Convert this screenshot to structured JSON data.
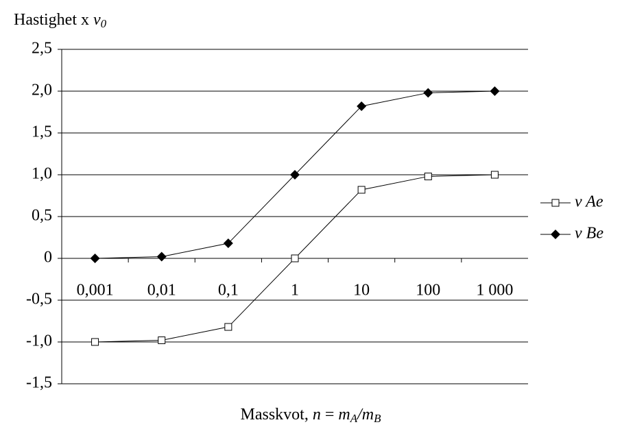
{
  "chart_data": {
    "type": "line",
    "ylabel": [
      "Hastighet x ",
      "v",
      "0"
    ],
    "xlabel": [
      "Masskvot, ",
      "n",
      " = ",
      "m",
      "A",
      "/",
      "m",
      "B"
    ],
    "categories": [
      "0,001",
      "0,01",
      "0,1",
      "1",
      "10",
      "100",
      "1 000"
    ],
    "series": [
      {
        "name": "v Ae",
        "color": "#000000",
        "marker": "square",
        "values": [
          -1.0,
          -0.98,
          -0.82,
          0,
          0.82,
          0.98,
          1.0
        ]
      },
      {
        "name": "v Be",
        "color": "#000000",
        "marker": "diamond",
        "values": [
          0,
          0.02,
          0.18,
          1.0,
          1.82,
          1.98,
          2.0
        ]
      }
    ],
    "ylim": [
      -1.5,
      2.5
    ],
    "yticks": [
      {
        "value": -1.5,
        "label": "-1,5"
      },
      {
        "value": -1.0,
        "label": "-1,0"
      },
      {
        "value": -0.5,
        "label": "-0,5"
      },
      0,
      {
        "value": 0.5,
        "label": "0,5"
      },
      {
        "value": 1.0,
        "label": "1,0"
      },
      {
        "value": 1.5,
        "label": "1,5"
      },
      {
        "value": 2.0,
        "label": "2,0"
      },
      {
        "value": 2.5,
        "label": "2,5"
      }
    ],
    "grid": true,
    "legend": "right"
  }
}
